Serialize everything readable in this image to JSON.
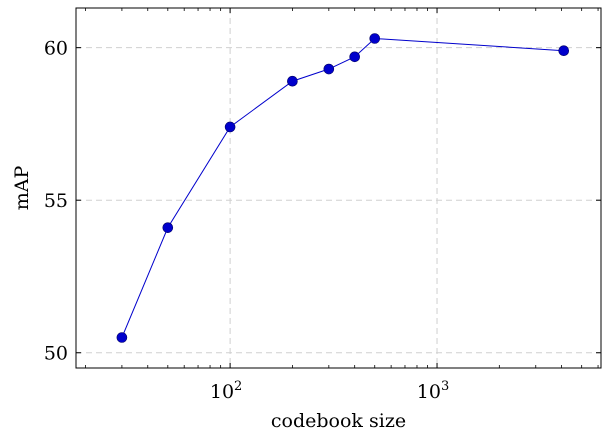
{
  "chart_data": {
    "type": "line",
    "title": "",
    "xlabel": "codebook size",
    "ylabel": "mAP",
    "xscale": "log",
    "xlim": [
      18,
      6200
    ],
    "ylim": [
      49.5,
      61.3
    ],
    "xticks": [
      {
        "value": 100,
        "base": "10",
        "exp": "2"
      },
      {
        "value": 1000,
        "base": "10",
        "exp": "3"
      }
    ],
    "yticks": [
      {
        "value": 50,
        "label": "50"
      },
      {
        "value": 55,
        "label": "55"
      },
      {
        "value": 60,
        "label": "60"
      }
    ],
    "grid": true,
    "series": [
      {
        "color": "#0000cc",
        "x": [
          30,
          50,
          100,
          200,
          300,
          400,
          500,
          4096
        ],
        "y": [
          50.5,
          54.1,
          57.4,
          58.9,
          59.3,
          59.7,
          60.3,
          59.9
        ]
      }
    ]
  }
}
